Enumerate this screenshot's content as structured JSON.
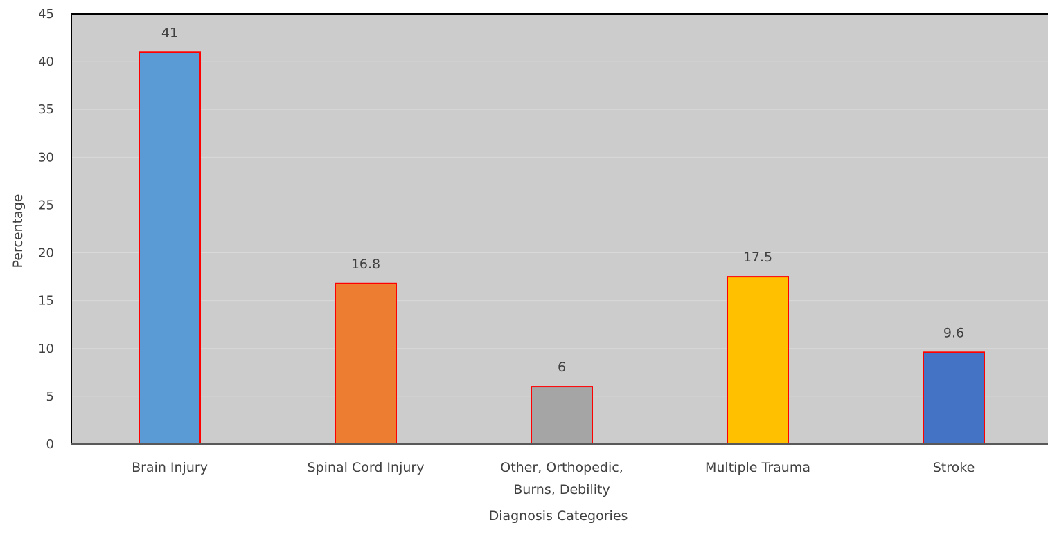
{
  "chart_data": {
    "type": "bar",
    "categories": [
      [
        "Brain Injury"
      ],
      [
        "Spinal Cord Injury"
      ],
      [
        "Other, Orthopedic,",
        "Burns, Debility"
      ],
      [
        "Multiple Trauma"
      ],
      [
        "Stroke"
      ]
    ],
    "values": [
      41,
      16.8,
      6,
      17.5,
      9.6
    ],
    "data_labels": [
      "41",
      "16.8",
      "6",
      "17.5",
      "9.6"
    ],
    "bar_colors": [
      "#5b9bd5",
      "#ed7d31",
      "#a5a5a5",
      "#ffc000",
      "#4472c4"
    ],
    "bar_border_color": "#ff0000",
    "plot_background": "#cccccc",
    "gridline_color": "#d9d9d9",
    "title": "",
    "xlabel": "Diagnosis Categories",
    "ylabel": "Percentage",
    "ylim": [
      0,
      45
    ],
    "yticks": [
      0,
      5,
      10,
      15,
      20,
      25,
      30,
      35,
      40,
      45
    ],
    "grid": true,
    "legend": "none"
  }
}
